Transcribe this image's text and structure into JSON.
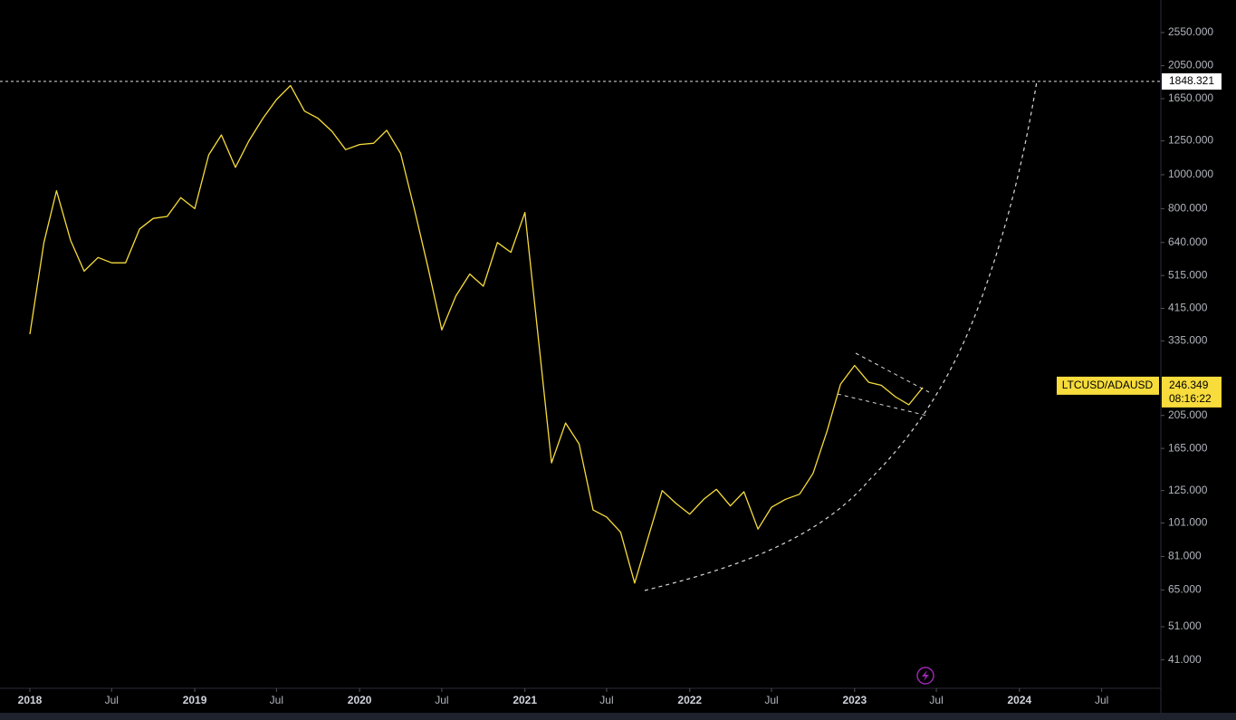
{
  "chart_data": {
    "type": "line",
    "symbol": "LTCUSD/ADAUSD",
    "countdown": "08:16:22",
    "log_scale": true,
    "x": [
      "2018-01",
      "2018-02",
      "2018-03",
      "2018-04",
      "2018-05",
      "2018-06",
      "2018-07",
      "2018-08",
      "2018-09",
      "2018-10",
      "2018-11",
      "2018-12",
      "2019-01",
      "2019-02",
      "2019-03",
      "2019-04",
      "2019-05",
      "2019-06",
      "2019-07",
      "2019-08",
      "2019-09",
      "2019-10",
      "2019-11",
      "2019-12",
      "2020-01",
      "2020-02",
      "2020-03",
      "2020-04",
      "2020-05",
      "2020-06",
      "2020-07",
      "2020-08",
      "2020-09",
      "2020-10",
      "2020-11",
      "2020-12",
      "2021-01",
      "2021-02",
      "2021-03",
      "2021-04",
      "2021-05",
      "2021-06",
      "2021-07",
      "2021-08",
      "2021-09",
      "2021-10",
      "2021-11",
      "2021-12",
      "2022-01",
      "2022-02",
      "2022-03",
      "2022-04",
      "2022-05",
      "2022-06",
      "2022-07",
      "2022-08",
      "2022-09",
      "2022-10",
      "2022-11",
      "2022-12",
      "2023-01",
      "2023-02",
      "2023-03",
      "2023-04",
      "2023-05",
      "2023-06"
    ],
    "series": [
      {
        "name": "LTCUSD/ADAUSD",
        "color": "#f7dc3c",
        "values": [
          350,
          640,
          900,
          650,
          530,
          580,
          560,
          560,
          700,
          750,
          760,
          860,
          800,
          1140,
          1300,
          1050,
          1250,
          1450,
          1640,
          1800,
          1520,
          1450,
          1330,
          1180,
          1220,
          1230,
          1340,
          1150,
          800,
          540,
          360,
          450,
          520,
          480,
          640,
          600,
          780,
          330,
          150,
          195,
          170,
          110,
          105,
          95,
          68,
          92,
          125,
          115,
          107,
          118,
          126,
          113,
          124,
          97,
          112,
          118,
          122,
          140,
          185,
          252,
          285,
          255,
          250,
          232,
          220,
          246.349
        ]
      }
    ],
    "hline": 1848.321,
    "xlim": [
      "2018-01",
      "2024-11"
    ],
    "xticks": [
      {
        "value": "2018-01",
        "label": "2018"
      },
      {
        "value": "2018-07",
        "label": "Jul"
      },
      {
        "value": "2019-01",
        "label": "2019"
      },
      {
        "value": "2019-07",
        "label": "Jul"
      },
      {
        "value": "2020-01",
        "label": "2020"
      },
      {
        "value": "2020-07",
        "label": "Jul"
      },
      {
        "value": "2021-01",
        "label": "2021"
      },
      {
        "value": "2021-07",
        "label": "Jul"
      },
      {
        "value": "2022-01",
        "label": "2022"
      },
      {
        "value": "2022-07",
        "label": "Jul"
      },
      {
        "value": "2023-01",
        "label": "2023"
      },
      {
        "value": "2023-07",
        "label": "Jul"
      },
      {
        "value": "2024-01",
        "label": "2024"
      },
      {
        "value": "2024-07",
        "label": "Jul"
      }
    ],
    "ylim": [
      34,
      3160
    ],
    "yticks": [
      {
        "value": 2550,
        "label": "2550.000"
      },
      {
        "value": 2050,
        "label": "2050.000"
      },
      {
        "value": 1650,
        "label": "1650.000"
      },
      {
        "value": 1250,
        "label": "1250.000"
      },
      {
        "value": 1000,
        "label": "1000.000"
      },
      {
        "value": 800,
        "label": "800.000"
      },
      {
        "value": 640,
        "label": "640.000"
      },
      {
        "value": 515,
        "label": "515.000"
      },
      {
        "value": 415,
        "label": "415.000"
      },
      {
        "value": 335,
        "label": "335.000"
      },
      {
        "value": 205,
        "label": "205.000"
      },
      {
        "value": 165,
        "label": "165.000"
      },
      {
        "value": 125,
        "label": "125.000"
      },
      {
        "value": 101,
        "label": "101.000"
      },
      {
        "value": 81,
        "label": "81.000"
      },
      {
        "value": 65,
        "label": "65.000"
      },
      {
        "value": 51,
        "label": "51.000"
      },
      {
        "value": 41,
        "label": "41.000"
      }
    ]
  }
}
